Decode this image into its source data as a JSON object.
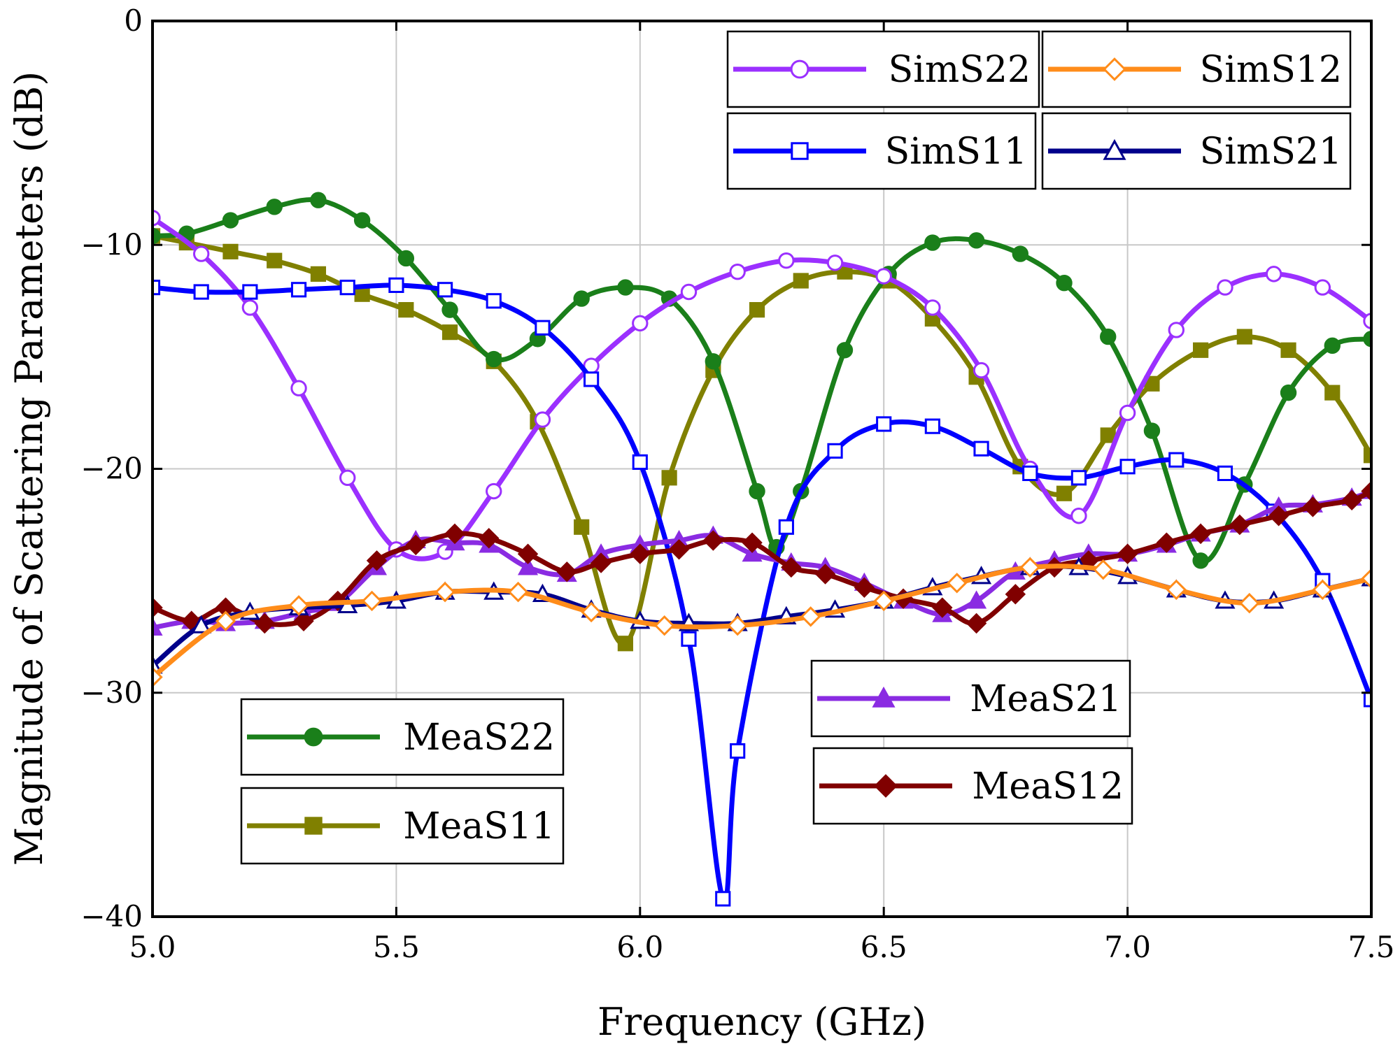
{
  "chart_data": {
    "type": "line",
    "title": "",
    "xlabel": "Frequency (GHz)",
    "ylabel": "Magnitude of Scattering Parameters (dB)",
    "xlim": [
      5.0,
      7.5
    ],
    "ylim": [
      -40,
      0
    ],
    "xticks": [
      "5.0",
      "5.5",
      "6.0",
      "6.5",
      "7.0",
      "7.5"
    ],
    "yticks": [
      "0",
      "−10",
      "−20",
      "−30",
      "−40"
    ],
    "grid": true,
    "legend_groups": [
      {
        "position": "top-right",
        "entries": [
          "SimS22",
          "SimS12",
          "SimS11",
          "SimS21"
        ]
      },
      {
        "position": "bottom-left",
        "entries": [
          "MeaS22",
          "MeaS11"
        ]
      },
      {
        "position": "bottom-center",
        "entries": [
          "MeaS21",
          "MeaS12"
        ]
      }
    ],
    "series": [
      {
        "name": "SimS22",
        "color": "#9b30ff",
        "marker": "circle-open",
        "x": [
          5.0,
          5.1,
          5.2,
          5.3,
          5.4,
          5.5,
          5.6,
          5.7,
          5.8,
          5.9,
          6.0,
          6.1,
          6.2,
          6.3,
          6.4,
          6.5,
          6.6,
          6.7,
          6.8,
          6.9,
          7.0,
          7.1,
          7.2,
          7.3,
          7.4,
          7.5
        ],
        "y": [
          -8.8,
          -10.4,
          -12.8,
          -16.4,
          -20.4,
          -23.6,
          -23.7,
          -21.0,
          -17.8,
          -15.4,
          -13.5,
          -12.1,
          -11.2,
          -10.7,
          -10.8,
          -11.4,
          -12.8,
          -15.6,
          -20.0,
          -22.1,
          -17.5,
          -13.8,
          -11.9,
          -11.3,
          -11.9,
          -13.4
        ]
      },
      {
        "name": "SimS12",
        "color": "#ff8c1a",
        "marker": "diamond-open",
        "x": [
          5.0,
          5.15,
          5.3,
          5.45,
          5.6,
          5.75,
          5.9,
          6.05,
          6.2,
          6.35,
          6.5,
          6.65,
          6.8,
          6.95,
          7.1,
          7.25,
          7.4,
          7.5
        ],
        "y": [
          -29.3,
          -26.8,
          -26.1,
          -25.9,
          -25.5,
          -25.5,
          -26.4,
          -27.0,
          -27.0,
          -26.6,
          -25.9,
          -25.1,
          -24.4,
          -24.5,
          -25.4,
          -26.0,
          -25.4,
          -24.9
        ]
      },
      {
        "name": "SimS11",
        "color": "#0000ff",
        "marker": "square-open",
        "x": [
          5.0,
          5.1,
          5.2,
          5.3,
          5.4,
          5.5,
          5.6,
          5.7,
          5.8,
          5.9,
          6.0,
          6.1,
          6.17,
          6.2,
          6.3,
          6.4,
          6.5,
          6.6,
          6.7,
          6.8,
          6.9,
          7.0,
          7.1,
          7.2,
          7.3,
          7.4,
          7.5
        ],
        "y": [
          -11.9,
          -12.1,
          -12.1,
          -12.0,
          -11.9,
          -11.8,
          -12.0,
          -12.5,
          -13.7,
          -16.0,
          -19.7,
          -27.6,
          -39.2,
          -32.6,
          -22.6,
          -19.2,
          -18.0,
          -18.1,
          -19.1,
          -20.2,
          -20.4,
          -19.9,
          -19.6,
          -20.2,
          -21.9,
          -25.0,
          -30.3
        ]
      },
      {
        "name": "SimS21",
        "color": "#00008b",
        "marker": "triangle-open",
        "x": [
          5.0,
          5.1,
          5.2,
          5.3,
          5.4,
          5.5,
          5.6,
          5.7,
          5.8,
          5.9,
          6.0,
          6.1,
          6.2,
          6.3,
          6.4,
          6.5,
          6.6,
          6.7,
          6.8,
          6.9,
          7.0,
          7.1,
          7.2,
          7.3,
          7.4,
          7.5
        ],
        "y": [
          -28.8,
          -27.0,
          -26.4,
          -26.2,
          -26.1,
          -25.9,
          -25.5,
          -25.5,
          -25.6,
          -26.3,
          -26.8,
          -26.9,
          -26.9,
          -26.6,
          -26.3,
          -25.9,
          -25.3,
          -24.8,
          -24.4,
          -24.4,
          -24.8,
          -25.4,
          -25.9,
          -25.9,
          -25.4,
          -24.9
        ]
      },
      {
        "name": "MeaS22",
        "color": "#1a7f1a",
        "marker": "circle-filled",
        "x": [
          5.0,
          5.07,
          5.16,
          5.25,
          5.34,
          5.43,
          5.52,
          5.61,
          5.7,
          5.79,
          5.88,
          5.97,
          6.06,
          6.15,
          6.24,
          6.28,
          6.33,
          6.42,
          6.51,
          6.6,
          6.69,
          6.78,
          6.87,
          6.96,
          7.05,
          7.15,
          7.24,
          7.33,
          7.42,
          7.5
        ],
        "y": [
          -9.6,
          -9.5,
          -8.9,
          -8.3,
          -8.0,
          -8.9,
          -10.6,
          -12.9,
          -15.1,
          -14.2,
          -12.4,
          -11.9,
          -12.4,
          -15.2,
          -21.0,
          -23.5,
          -21.0,
          -14.7,
          -11.3,
          -9.9,
          -9.8,
          -10.4,
          -11.7,
          -14.1,
          -18.3,
          -24.1,
          -20.7,
          -16.6,
          -14.5,
          -14.2
        ]
      },
      {
        "name": "MeaS11",
        "color": "#808000",
        "marker": "square-filled",
        "x": [
          5.0,
          5.07,
          5.16,
          5.25,
          5.34,
          5.43,
          5.52,
          5.61,
          5.7,
          5.79,
          5.88,
          5.97,
          6.06,
          6.15,
          6.24,
          6.33,
          6.42,
          6.51,
          6.6,
          6.69,
          6.78,
          6.87,
          6.96,
          7.05,
          7.15,
          7.24,
          7.33,
          7.42,
          7.5
        ],
        "y": [
          -9.6,
          -9.9,
          -10.3,
          -10.7,
          -11.3,
          -12.2,
          -12.9,
          -13.9,
          -15.2,
          -17.9,
          -22.6,
          -27.8,
          -20.4,
          -15.6,
          -12.9,
          -11.6,
          -11.2,
          -11.6,
          -13.3,
          -15.9,
          -19.9,
          -21.1,
          -18.5,
          -16.2,
          -14.7,
          -14.1,
          -14.7,
          -16.6,
          -19.4
        ]
      },
      {
        "name": "MeaS21",
        "color": "#8a2be2",
        "marker": "triangle-filled",
        "x": [
          5.0,
          5.08,
          5.15,
          5.23,
          5.31,
          5.38,
          5.46,
          5.54,
          5.62,
          5.69,
          5.77,
          5.85,
          5.92,
          6.0,
          6.08,
          6.15,
          6.23,
          6.31,
          6.38,
          6.46,
          6.54,
          6.62,
          6.69,
          6.77,
          6.85,
          6.92,
          7.0,
          7.08,
          7.15,
          7.23,
          7.31,
          7.38,
          7.46,
          7.5
        ],
        "y": [
          -27.1,
          -26.8,
          -26.9,
          -26.8,
          -26.4,
          -26.0,
          -24.4,
          -23.2,
          -23.3,
          -23.4,
          -24.4,
          -24.7,
          -23.8,
          -23.4,
          -23.2,
          -23.0,
          -23.8,
          -24.2,
          -24.4,
          -25.1,
          -25.9,
          -26.5,
          -25.9,
          -24.6,
          -24.1,
          -23.8,
          -23.8,
          -23.4,
          -22.9,
          -22.5,
          -21.7,
          -21.6,
          -21.3,
          -21.0
        ]
      },
      {
        "name": "MeaS12",
        "color": "#800000",
        "marker": "diamond-filled",
        "x": [
          5.0,
          5.08,
          5.15,
          5.23,
          5.31,
          5.38,
          5.46,
          5.54,
          5.62,
          5.69,
          5.77,
          5.85,
          5.92,
          6.0,
          6.08,
          6.15,
          6.23,
          6.31,
          6.38,
          6.46,
          6.54,
          6.62,
          6.69,
          6.77,
          6.85,
          6.92,
          7.0,
          7.08,
          7.15,
          7.23,
          7.31,
          7.38,
          7.46,
          7.5
        ],
        "y": [
          -26.2,
          -26.8,
          -26.2,
          -26.9,
          -26.8,
          -25.9,
          -24.1,
          -23.4,
          -22.9,
          -23.1,
          -23.8,
          -24.6,
          -24.2,
          -23.8,
          -23.6,
          -23.2,
          -23.3,
          -24.4,
          -24.7,
          -25.3,
          -25.8,
          -26.2,
          -26.9,
          -25.6,
          -24.4,
          -24.1,
          -23.8,
          -23.3,
          -22.9,
          -22.5,
          -22.1,
          -21.7,
          -21.4,
          -21.0
        ]
      }
    ]
  }
}
